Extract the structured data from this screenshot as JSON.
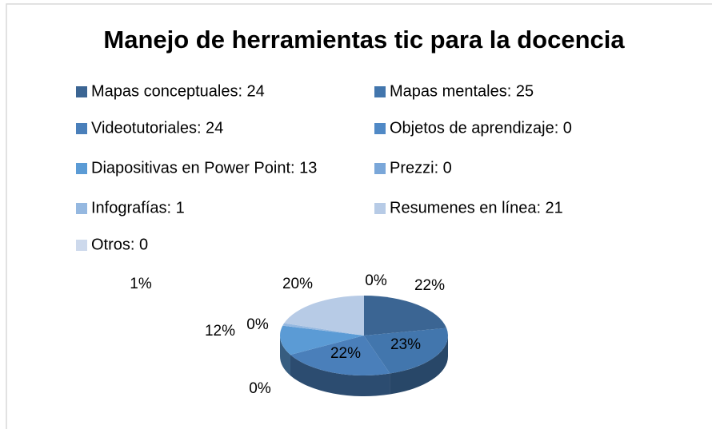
{
  "chart_data": {
    "type": "pie",
    "title": "Manejo de herramientas tic para la docencia",
    "categories": [
      "Mapas conceptuales: 24",
      "Mapas mentales: 25",
      "Videotutoriales: 24",
      "Objetos de aprendizaje: 0",
      "Diapositivas en Power Point: 13",
      "Prezzi: 0",
      "Infografías: 1",
      "Resumenes en línea: 21",
      "Otros: 0"
    ],
    "values": [
      22,
      23,
      22,
      0,
      12,
      0,
      1,
      20,
      0
    ],
    "value_labels": [
      "22%",
      "23%",
      "22%",
      "0%",
      "12%",
      "0%",
      "1%",
      "20%",
      "0%"
    ],
    "colors": [
      "#3b6593",
      "#4276ad",
      "#4a7fba",
      "#5089c6",
      "#5b9bd5",
      "#7aa7d9",
      "#95b8e0",
      "#b7cbe6",
      "#cdd9ec"
    ]
  }
}
